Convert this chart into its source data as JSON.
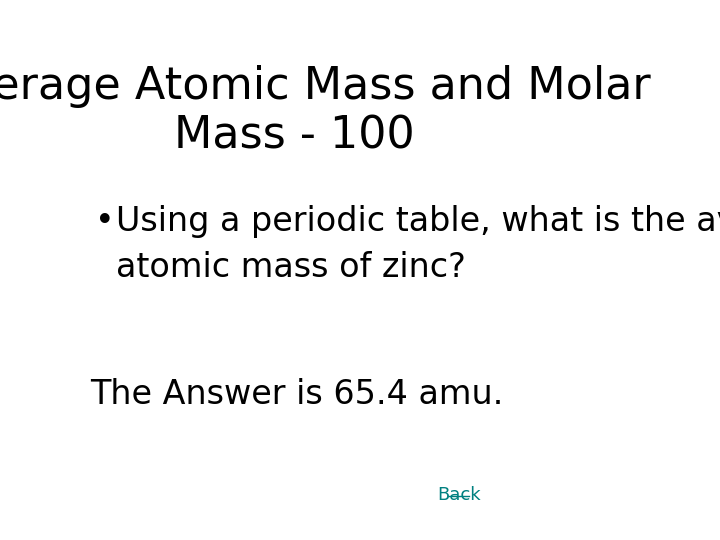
{
  "title_line1": "Average Atomic Mass and Molar",
  "title_line2": "Mass - 100",
  "bullet_line1": "Using a periodic table, what is the average",
  "bullet_line2": "atomic mass of zinc?",
  "answer_text": "The Answer is 65.4 amu.",
  "back_text": "Back",
  "background_color": "#ffffff",
  "title_color": "#000000",
  "body_color": "#000000",
  "answer_color": "#000000",
  "back_color": "#008080",
  "title_fontsize": 32,
  "body_fontsize": 24,
  "answer_fontsize": 24,
  "back_fontsize": 13,
  "bullet_symbol": "•"
}
